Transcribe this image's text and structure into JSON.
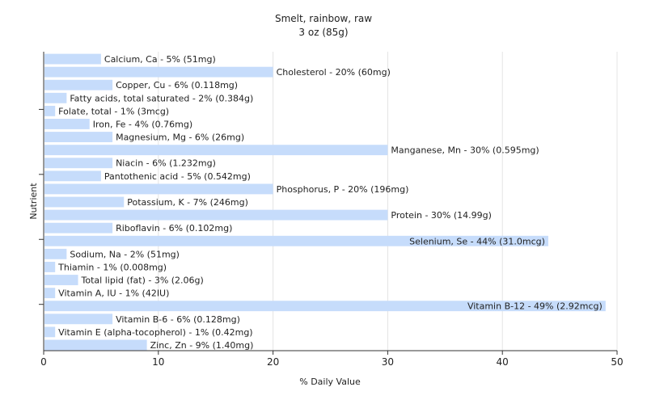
{
  "chart_data": {
    "type": "bar",
    "orientation": "horizontal",
    "title": "Smelt, rainbow, raw",
    "subtitle": "3 oz (85g)",
    "xlabel": "% Daily Value",
    "ylabel": "Nutrient",
    "xlim": [
      0,
      50
    ],
    "xticks": [
      0,
      10,
      20,
      30,
      40,
      50
    ],
    "grid": true,
    "bar_color": "#c6dcfb",
    "categories": [
      "Calcium, Ca",
      "Cholesterol",
      "Copper, Cu",
      "Fatty acids, total saturated",
      "Folate, total",
      "Iron, Fe",
      "Magnesium, Mg",
      "Manganese, Mn",
      "Niacin",
      "Pantothenic acid",
      "Phosphorus, P",
      "Potassium, K",
      "Protein",
      "Riboflavin",
      "Selenium, Se",
      "Sodium, Na",
      "Thiamin",
      "Total lipid (fat)",
      "Vitamin A, IU",
      "Vitamin B-12",
      "Vitamin B-6",
      "Vitamin E (alpha-tocopherol)",
      "Zinc, Zn"
    ],
    "values": [
      5,
      20,
      6,
      2,
      1,
      4,
      6,
      30,
      6,
      5,
      20,
      7,
      30,
      6,
      44,
      2,
      1,
      3,
      1,
      49,
      6,
      1,
      9
    ],
    "labels": [
      "Calcium, Ca - 5% (51mg)",
      "Cholesterol - 20% (60mg)",
      "Copper, Cu - 6% (0.118mg)",
      "Fatty acids, total saturated - 2% (0.384g)",
      "Folate, total - 1% (3mcg)",
      "Iron, Fe - 4% (0.76mg)",
      "Magnesium, Mg - 6% (26mg)",
      "Manganese, Mn - 30% (0.595mg)",
      "Niacin - 6% (1.232mg)",
      "Pantothenic acid - 5% (0.542mg)",
      "Phosphorus, P - 20% (196mg)",
      "Potassium, K - 7% (246mg)",
      "Protein - 30% (14.99g)",
      "Riboflavin - 6% (0.102mg)",
      "Selenium, Se - 44% (31.0mcg)",
      "Sodium, Na - 2% (51mg)",
      "Thiamin - 1% (0.008mg)",
      "Total lipid (fat) - 3% (2.06g)",
      "Vitamin A, IU - 1% (42IU)",
      "Vitamin B-12 - 49% (2.92mcg)",
      "Vitamin B-6 - 6% (0.128mg)",
      "Vitamin E (alpha-tocopherol) - 1% (0.42mg)",
      "Zinc, Zn - 9% (1.40mg)"
    ]
  }
}
